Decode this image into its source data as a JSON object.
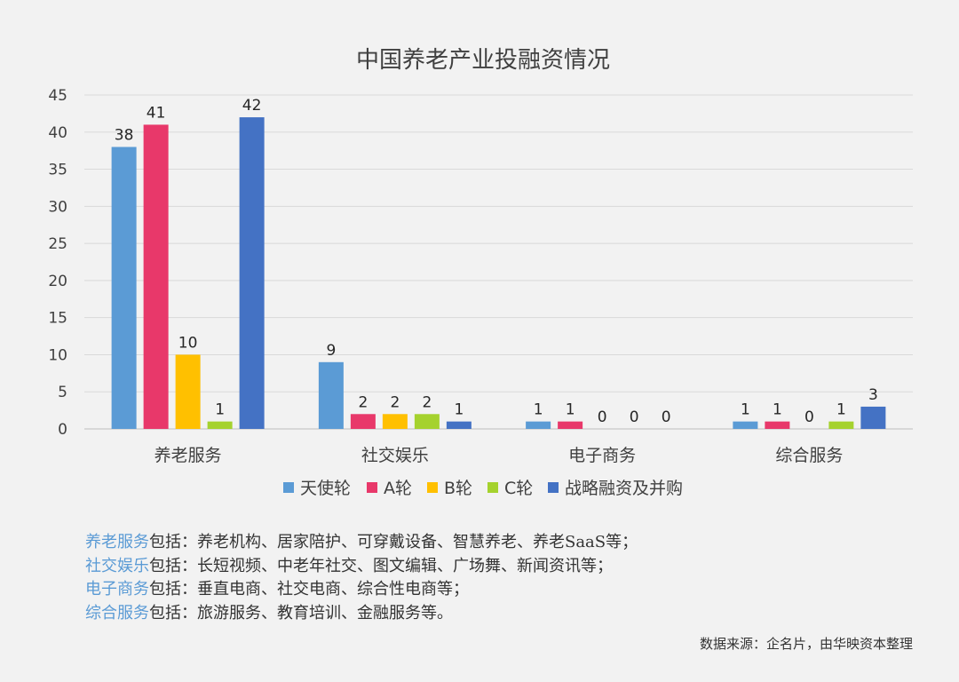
{
  "chart_data": {
    "type": "bar",
    "title": "中国养老产业投融资情况",
    "categories": [
      "养老服务",
      "社交娱乐",
      "电子商务",
      "综合服务"
    ],
    "series": [
      {
        "name": "天使轮",
        "color": "#5b9bd5",
        "values": [
          38,
          9,
          1,
          1
        ]
      },
      {
        "name": "A轮",
        "color": "#e8386a",
        "values": [
          41,
          2,
          1,
          1
        ]
      },
      {
        "name": "B轮",
        "color": "#ffc000",
        "values": [
          10,
          2,
          0,
          0
        ]
      },
      {
        "name": "C轮",
        "color": "#a5d22e",
        "values": [
          1,
          2,
          0,
          1
        ]
      },
      {
        "name": "战略融资及并购",
        "color": "#4472c4",
        "values": [
          42,
          1,
          0,
          3
        ]
      }
    ],
    "yticks": [
      0,
      5,
      10,
      15,
      20,
      25,
      30,
      35,
      40,
      45
    ],
    "ylim": [
      0,
      45
    ],
    "xlabel": "",
    "ylabel": "",
    "grid": true,
    "legend": "bottom"
  },
  "notes": [
    {
      "key": "养老服务",
      "text": "包括：养老机构、居家陪护、可穿戴设备、智慧养老、养老SaaS等；"
    },
    {
      "key": "社交娱乐",
      "text": "包括：长短视频、中老年社交、图文编辑、广场舞、新闻资讯等；"
    },
    {
      "key": "电子商务",
      "text": "包括：垂直电商、社交电商、综合性电商等；"
    },
    {
      "key": "综合服务",
      "text": "包括：旅游服务、教育培训、金融服务等。"
    }
  ],
  "source": "数据来源：企名片，由华映资本整理"
}
